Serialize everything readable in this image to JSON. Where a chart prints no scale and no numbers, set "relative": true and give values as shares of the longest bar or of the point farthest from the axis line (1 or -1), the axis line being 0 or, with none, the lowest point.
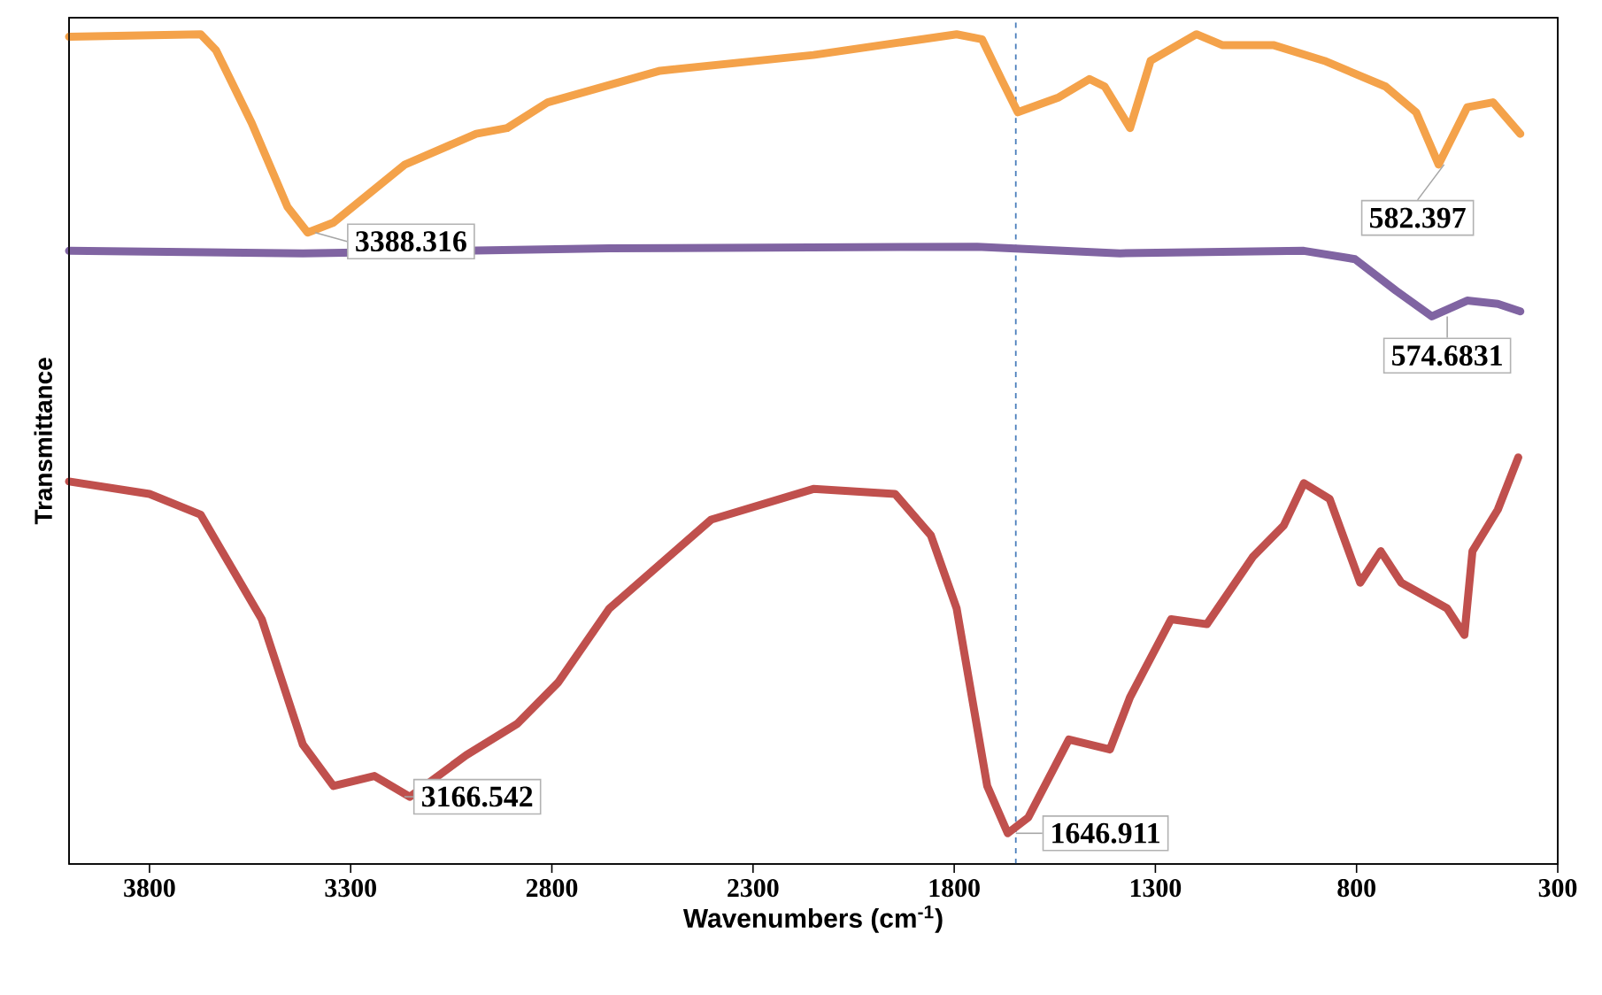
{
  "chart_data": {
    "type": "line",
    "relative": true,
    "xlabel": "Wavenumbers (cm$^{-1}$)",
    "ylabel": "Transmittance",
    "xlim": [
      4000,
      300
    ],
    "xticks": [
      3800,
      3300,
      2800,
      2300,
      1800,
      1300,
      800,
      300
    ],
    "series": [
      {
        "color": "#f4a24a",
        "x": [
          4000,
          3673,
          3635,
          3546,
          3457,
          3407,
          3343,
          3165,
          2988,
          2911,
          2810,
          2531,
          2150,
          1794,
          1731,
          1680,
          1642,
          1540,
          1464,
          1426,
          1363,
          1312,
          1198,
          1134,
          1007,
          880,
          728,
          652,
          596,
          525,
          461,
          393
        ],
        "values": [
          0.997,
          1.0,
          0.981,
          0.893,
          0.792,
          0.761,
          0.773,
          0.843,
          0.88,
          0.887,
          0.918,
          0.956,
          0.975,
          1.0,
          0.994,
          0.943,
          0.906,
          0.924,
          0.946,
          0.937,
          0.887,
          0.968,
          1.0,
          0.987,
          0.987,
          0.968,
          0.937,
          0.906,
          0.843,
          0.912,
          0.918,
          0.88
        ]
      },
      {
        "color": "#8064a2",
        "x": [
          4000,
          3419,
          2657,
          1743,
          1388,
          931,
          804,
          702,
          613,
          525,
          449,
          393
        ],
        "values": [
          0.739,
          0.736,
          0.742,
          0.744,
          0.736,
          0.739,
          0.729,
          0.691,
          0.66,
          0.679,
          0.675,
          0.666
        ]
      },
      {
        "color": "#c0504d",
        "x": [
          4000,
          3800,
          3673,
          3521,
          3419,
          3343,
          3241,
          3153,
          3013,
          2886,
          2784,
          2657,
          2404,
          2150,
          1947,
          1858,
          1794,
          1718,
          1667,
          1616,
          1515,
          1413,
          1363,
          1261,
          1172,
          1058,
          981,
          931,
          867,
          791,
          740,
          689,
          575,
          532,
          512,
          449,
          398
        ],
        "values": [
          0.461,
          0.446,
          0.421,
          0.295,
          0.144,
          0.094,
          0.106,
          0.081,
          0.131,
          0.169,
          0.219,
          0.308,
          0.415,
          0.452,
          0.446,
          0.396,
          0.308,
          0.094,
          0.037,
          0.056,
          0.15,
          0.138,
          0.201,
          0.295,
          0.289,
          0.37,
          0.408,
          0.459,
          0.44,
          0.339,
          0.377,
          0.339,
          0.308,
          0.276,
          0.377,
          0.427,
          0.49
        ]
      }
    ],
    "annotations": [
      {
        "text": "3388.316",
        "x": 3388.316,
        "y": 0.761
      },
      {
        "text": "582.397",
        "x": 582.397,
        "y": 0.843
      },
      {
        "text": "574.6831",
        "x": 574.6831,
        "y": 0.66
      },
      {
        "text": "3166.542",
        "x": 3166.542,
        "y": 0.081
      },
      {
        "text": "1646.911",
        "x": 1646.911,
        "y": 0.037
      }
    ],
    "ref_lines": [
      {
        "axis": "x",
        "value": 1646.911,
        "color": "#4a7ebb",
        "line_style": "dashed"
      }
    ]
  }
}
